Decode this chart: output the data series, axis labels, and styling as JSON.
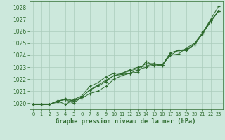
{
  "x": [
    0,
    1,
    2,
    3,
    4,
    5,
    6,
    7,
    8,
    9,
    10,
    11,
    12,
    13,
    14,
    15,
    16,
    17,
    18,
    19,
    20,
    21,
    22,
    23
  ],
  "line1": [
    1019.9,
    1019.9,
    1019.9,
    1020.1,
    1020.4,
    1020.2,
    1020.4,
    1020.8,
    1021.0,
    1021.4,
    1022.0,
    1022.3,
    1022.5,
    1022.6,
    1023.5,
    1023.1,
    1023.2,
    1024.0,
    1024.1,
    1024.6,
    1025.0,
    1025.9,
    1027.0,
    1028.1
  ],
  "line2": [
    1019.9,
    1019.9,
    1019.9,
    1020.2,
    1019.9,
    1020.3,
    1020.6,
    1021.4,
    1021.7,
    1022.2,
    1022.5,
    1022.5,
    1022.8,
    1023.0,
    1023.1,
    1023.3,
    1023.2,
    1024.2,
    1024.4,
    1024.5,
    1024.9,
    1025.8,
    1026.9,
    1027.7
  ],
  "line3": [
    1019.9,
    1019.9,
    1019.9,
    1020.2,
    1020.3,
    1020.0,
    1020.5,
    1021.1,
    1021.4,
    1021.8,
    1022.3,
    1022.5,
    1022.7,
    1022.9,
    1023.3,
    1023.3,
    1023.1,
    1024.2,
    1024.4,
    1024.4,
    1024.9,
    1025.8,
    1026.9,
    1027.7
  ],
  "line4": [
    1019.9,
    1019.9,
    1019.9,
    1020.2,
    1020.3,
    1020.2,
    1020.5,
    1021.1,
    1021.5,
    1021.9,
    1022.3,
    1022.4,
    1022.5,
    1022.8,
    1023.0,
    1023.2,
    1023.2,
    1024.0,
    1024.4,
    1024.4,
    1024.9,
    1025.8,
    1026.8,
    1027.7
  ],
  "line_color": "#2d6a2d",
  "bg_color": "#cce8dc",
  "grid_color": "#aaccbb",
  "xlabel": "Graphe pression niveau de la mer (hPa)",
  "ylim": [
    1019.5,
    1028.5
  ],
  "xlim": [
    -0.5,
    23.5
  ],
  "yticks": [
    1020,
    1021,
    1022,
    1023,
    1024,
    1025,
    1026,
    1027,
    1028
  ],
  "xticks": [
    0,
    1,
    2,
    3,
    4,
    5,
    6,
    7,
    8,
    9,
    10,
    11,
    12,
    13,
    14,
    15,
    16,
    17,
    18,
    19,
    20,
    21,
    22,
    23
  ]
}
